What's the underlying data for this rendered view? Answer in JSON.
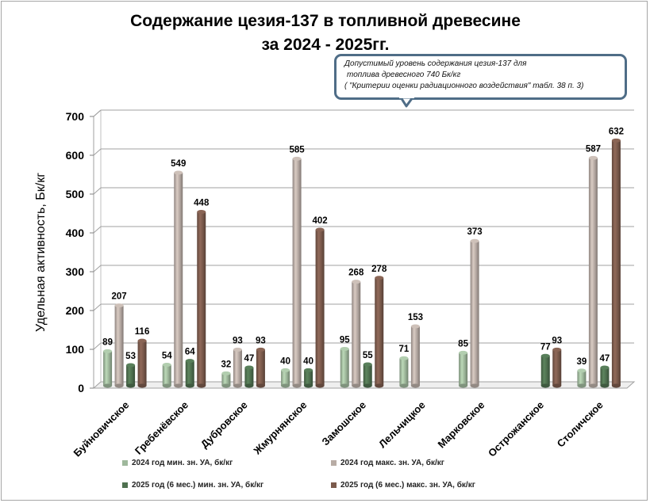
{
  "title_line1": "Содержание цезия-137 в топливной древесине",
  "title_line2": "за 2024 - 2025гг.",
  "callout": {
    "line1": "Допустимый уровень содержания цезия-137 для",
    "line2": "топлива древесного 740 Бк/кг",
    "line3": "( \"Критерии оценки радиационного воздействия\" табл. 38 п. 3)"
  },
  "chart_data": {
    "type": "bar",
    "ylabel": "Удельная активность, Бк/кг",
    "ylim": [
      0,
      700
    ],
    "yticks": [
      "0",
      "100",
      "200",
      "300",
      "400",
      "500",
      "600",
      "700"
    ],
    "categories": [
      "Буйновичское",
      "Гребенёвское",
      "Дубровское",
      "Жмурнянское",
      "Замошское",
      "Лельчицкое",
      "Марковское",
      "Острожанское",
      "Столичское"
    ],
    "series": [
      {
        "name": "2024 год мин. зн. УА, бк/кг",
        "color": "#9fb89c",
        "values": [
          89,
          54,
          32,
          40,
          95,
          71,
          85,
          null,
          39
        ]
      },
      {
        "name": "2024 год макс.  зн. УА, бк/кг",
        "color": "#b8aca5",
        "values": [
          207,
          549,
          93,
          585,
          268,
          153,
          373,
          null,
          587
        ]
      },
      {
        "name": "2025 год (6 мес.) мин. зн. УА, бк/кг",
        "color": "#4f7150",
        "values": [
          53,
          64,
          47,
          40,
          55,
          null,
          null,
          77,
          47
        ]
      },
      {
        "name": "2025 год (6 мес.) макс.  зн. УА, бк/кг",
        "color": "#7b5a4c",
        "values": [
          116,
          448,
          93,
          402,
          278,
          null,
          null,
          93,
          632
        ]
      }
    ],
    "legend_position": "bottom",
    "grid": true
  }
}
